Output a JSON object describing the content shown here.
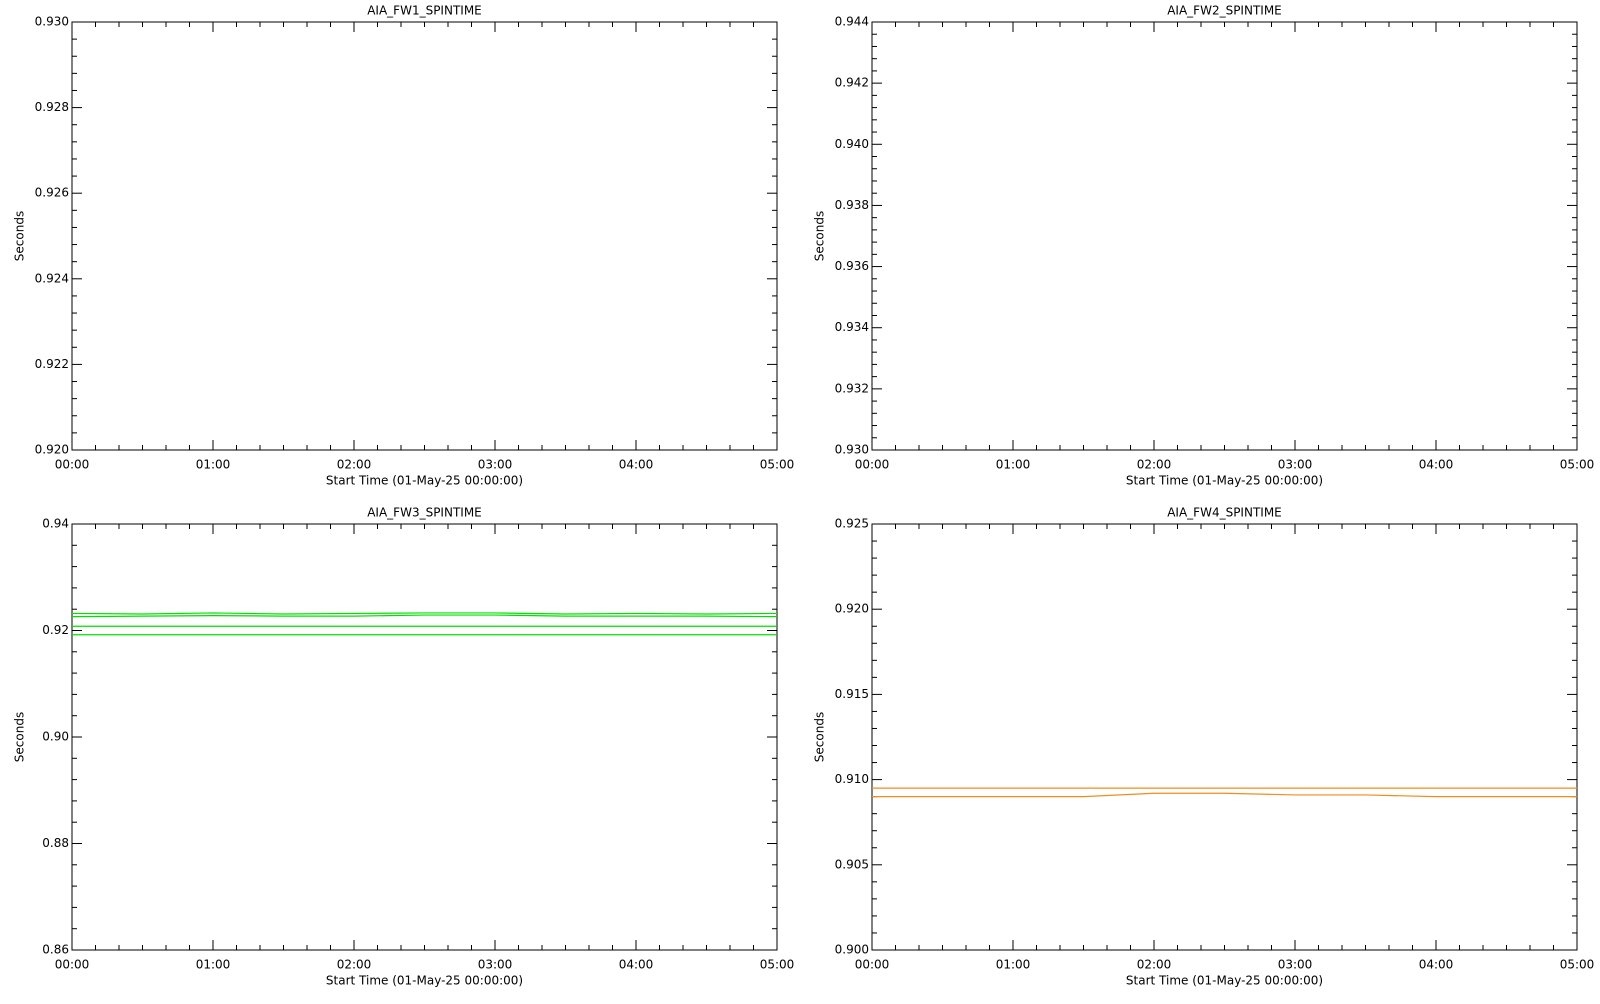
{
  "chart_data": [
    {
      "type": "line",
      "title": "AIA_FW1_SPINTIME",
      "xlabel": "Start Time (01-May-25 00:00:00)",
      "ylabel": "Seconds",
      "xlim": [
        0,
        5
      ],
      "xticks": [
        {
          "value": 0,
          "label": "00:00"
        },
        {
          "value": 1,
          "label": "01:00"
        },
        {
          "value": 2,
          "label": "02:00"
        },
        {
          "value": 3,
          "label": "03:00"
        },
        {
          "value": 4,
          "label": "04:00"
        },
        {
          "value": 5,
          "label": "05:00"
        }
      ],
      "ylim": [
        0.92,
        0.93
      ],
      "yticks": [
        {
          "value": 0.92,
          "label": "0.920"
        },
        0.922,
        0.924,
        0.926,
        0.928,
        {
          "value": 0.93,
          "label": "0.930"
        }
      ],
      "series": []
    },
    {
      "type": "line",
      "title": "AIA_FW2_SPINTIME",
      "xlabel": "Start Time (01-May-25 00:00:00)",
      "ylabel": "Seconds",
      "xlim": [
        0,
        5
      ],
      "xticks": [
        {
          "value": 0,
          "label": "00:00"
        },
        {
          "value": 1,
          "label": "01:00"
        },
        {
          "value": 2,
          "label": "02:00"
        },
        {
          "value": 3,
          "label": "03:00"
        },
        {
          "value": 4,
          "label": "04:00"
        },
        {
          "value": 5,
          "label": "05:00"
        }
      ],
      "ylim": [
        0.93,
        0.944
      ],
      "yticks": [
        {
          "value": 0.93,
          "label": "0.930"
        },
        0.932,
        0.934,
        0.936,
        0.938,
        {
          "value": 0.94,
          "label": "0.940"
        },
        0.942,
        0.944
      ],
      "series": []
    },
    {
      "type": "line",
      "title": "AIA_FW3_SPINTIME",
      "xlabel": "Start Time (01-May-25 00:00:00)",
      "ylabel": "Seconds",
      "xlim": [
        0,
        5
      ],
      "xticks": [
        {
          "value": 0,
          "label": "00:00"
        },
        {
          "value": 1,
          "label": "01:00"
        },
        {
          "value": 2,
          "label": "02:00"
        },
        {
          "value": 3,
          "label": "03:00"
        },
        {
          "value": 4,
          "label": "04:00"
        },
        {
          "value": 5,
          "label": "05:00"
        }
      ],
      "ylim": [
        0.86,
        0.94
      ],
      "yticks": [
        0.86,
        0.88,
        {
          "value": 0.9,
          "label": "0.90"
        },
        0.92,
        0.94
      ],
      "series": [
        {
          "color": "#00e000",
          "x": [
            0,
            0.5,
            1,
            1.5,
            2,
            2.5,
            3,
            3.5,
            4,
            4.5,
            5
          ],
          "values": [
            0.9232,
            0.9231,
            0.9233,
            0.9231,
            0.9232,
            0.9233,
            0.9233,
            0.9231,
            0.9232,
            0.9231,
            0.9232
          ]
        },
        {
          "color": "#00e000",
          "x": [
            0,
            0.5,
            1,
            1.5,
            2,
            2.5,
            3,
            3.5,
            4,
            4.5,
            5
          ],
          "values": [
            0.9226,
            0.9227,
            0.9228,
            0.9227,
            0.9227,
            0.9229,
            0.9229,
            0.9227,
            0.9227,
            0.9227,
            0.9226
          ]
        },
        {
          "color": "#00e000",
          "x": [
            0,
            0.5,
            1,
            1.5,
            2,
            2.5,
            3,
            3.5,
            4,
            4.5,
            5
          ],
          "values": [
            0.9208,
            0.9208,
            0.9208,
            0.9208,
            0.9208,
            0.9208,
            0.9208,
            0.9208,
            0.9208,
            0.9208,
            0.9208
          ]
        },
        {
          "color": "#00e000",
          "x": [
            0,
            0.5,
            1,
            1.5,
            2,
            2.5,
            3,
            3.5,
            4,
            4.5,
            5
          ],
          "values": [
            0.9192,
            0.9192,
            0.9192,
            0.9192,
            0.9192,
            0.9192,
            0.9192,
            0.9192,
            0.9192,
            0.9192,
            0.9192
          ]
        }
      ]
    },
    {
      "type": "line",
      "title": "AIA_FW4_SPINTIME",
      "xlabel": "Start Time (01-May-25 00:00:00)",
      "ylabel": "Seconds",
      "xlim": [
        0,
        5
      ],
      "xticks": [
        {
          "value": 0,
          "label": "00:00"
        },
        {
          "value": 1,
          "label": "01:00"
        },
        {
          "value": 2,
          "label": "02:00"
        },
        {
          "value": 3,
          "label": "03:00"
        },
        {
          "value": 4,
          "label": "04:00"
        },
        {
          "value": 5,
          "label": "05:00"
        }
      ],
      "ylim": [
        0.9,
        0.925
      ],
      "yticks": [
        {
          "value": 0.9,
          "label": "0.900"
        },
        0.905,
        {
          "value": 0.91,
          "label": "0.910"
        },
        0.915,
        {
          "value": 0.92,
          "label": "0.920"
        },
        0.925
      ],
      "series": [
        {
          "color": "#f08c1e",
          "x": [
            0,
            0.5,
            1,
            1.5,
            2,
            2.5,
            3,
            3.5,
            4,
            4.5,
            5
          ],
          "values": [
            0.9095,
            0.9095,
            0.9095,
            0.9095,
            0.9095,
            0.9095,
            0.9095,
            0.9095,
            0.9095,
            0.9095,
            0.9095
          ]
        },
        {
          "color": "#f08c1e",
          "x": [
            0,
            0.5,
            1,
            1.5,
            2,
            2.5,
            3,
            3.5,
            4,
            4.5,
            5
          ],
          "values": [
            0.909,
            0.909,
            0.909,
            0.909,
            0.9092,
            0.9092,
            0.9091,
            0.9091,
            0.909,
            0.909,
            0.909
          ]
        }
      ]
    }
  ]
}
